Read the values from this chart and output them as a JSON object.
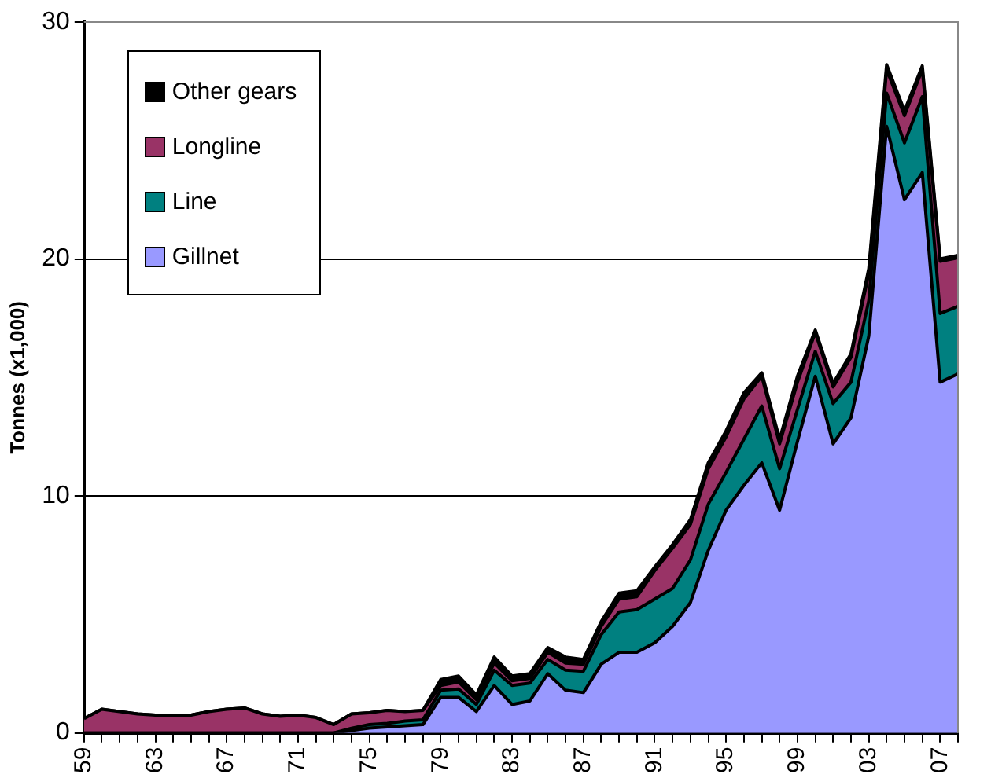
{
  "chart_data": {
    "type": "area",
    "stacked": true,
    "ylabel": "Tonnes (x1,000)",
    "categories": [
      "59",
      null,
      null,
      null,
      "63",
      null,
      null,
      null,
      "67",
      null,
      null,
      null,
      "71",
      null,
      null,
      null,
      "75",
      null,
      null,
      null,
      "79",
      null,
      null,
      null,
      "83",
      null,
      null,
      null,
      "87",
      null,
      null,
      null,
      "91",
      null,
      null,
      null,
      "95",
      null,
      null,
      null,
      "99",
      null,
      null,
      null,
      "03",
      null,
      null,
      null,
      "07",
      null
    ],
    "series": [
      {
        "name": "Gillnet",
        "color": "#9999ff",
        "values": [
          0,
          0,
          0,
          0,
          0,
          0,
          0,
          0,
          0,
          0,
          0,
          0,
          0,
          0,
          0,
          0.1,
          0.2,
          0.25,
          0.3,
          0.35,
          1.5,
          1.5,
          0.9,
          2.0,
          1.2,
          1.35,
          2.5,
          1.8,
          1.7,
          2.9,
          3.4,
          3.4,
          3.8,
          4.5,
          5.5,
          7.7,
          9.4,
          10.45,
          11.4,
          9.4,
          12.3,
          15.05,
          12.2,
          13.3,
          16.75,
          25.6,
          22.5,
          23.65,
          14.8,
          15.15
        ]
      },
      {
        "name": "Line",
        "color": "#008080",
        "values": [
          0,
          0,
          0,
          0,
          0,
          0,
          0,
          0,
          0,
          0,
          0,
          0,
          0,
          0,
          0,
          0.1,
          0.15,
          0.15,
          0.2,
          0.2,
          0.3,
          0.35,
          0.3,
          0.65,
          0.8,
          0.75,
          0.6,
          0.85,
          0.9,
          1.25,
          1.7,
          1.8,
          1.85,
          1.6,
          1.8,
          1.95,
          1.6,
          1.95,
          2.4,
          1.75,
          1.35,
          1.05,
          1.7,
          1.5,
          1.5,
          1.4,
          2.4,
          3.2,
          2.9,
          2.85
        ]
      },
      {
        "name": "Longline",
        "color": "#993366",
        "values": [
          0.6,
          1.0,
          0.9,
          0.8,
          0.75,
          0.75,
          0.75,
          0.9,
          1.0,
          1.05,
          0.8,
          0.7,
          0.75,
          0.65,
          0.35,
          0.6,
          0.5,
          0.55,
          0.4,
          0.4,
          0.2,
          0.3,
          0.2,
          0.3,
          0.2,
          0.2,
          0.3,
          0.3,
          0.3,
          0.35,
          0.55,
          0.55,
          1.2,
          1.7,
          1.5,
          1.5,
          1.5,
          1.7,
          1.25,
          1.05,
          1.15,
          0.8,
          0.7,
          1.05,
          1.15,
          1.0,
          1.15,
          1.15,
          2.2,
          2.05
        ]
      },
      {
        "name": "Other gears",
        "color": "#000000",
        "values": [
          0,
          0,
          0,
          0,
          0,
          0,
          0,
          0,
          0,
          0,
          0,
          0,
          0,
          0,
          0,
          0,
          0,
          0,
          0,
          0,
          0.25,
          0.25,
          0.2,
          0.25,
          0.2,
          0.2,
          0.2,
          0.25,
          0.2,
          0.2,
          0.25,
          0.25,
          0.15,
          0.15,
          0.2,
          0.25,
          0.25,
          0.25,
          0.15,
          0.2,
          0.25,
          0.1,
          0.15,
          0.15,
          0.2,
          0.2,
          0.2,
          0.15,
          0.1,
          0.1
        ]
      }
    ],
    "ylim": [
      0,
      30
    ],
    "yticks": [
      0,
      10,
      20,
      30
    ],
    "grid": "y",
    "legend": "top left"
  }
}
